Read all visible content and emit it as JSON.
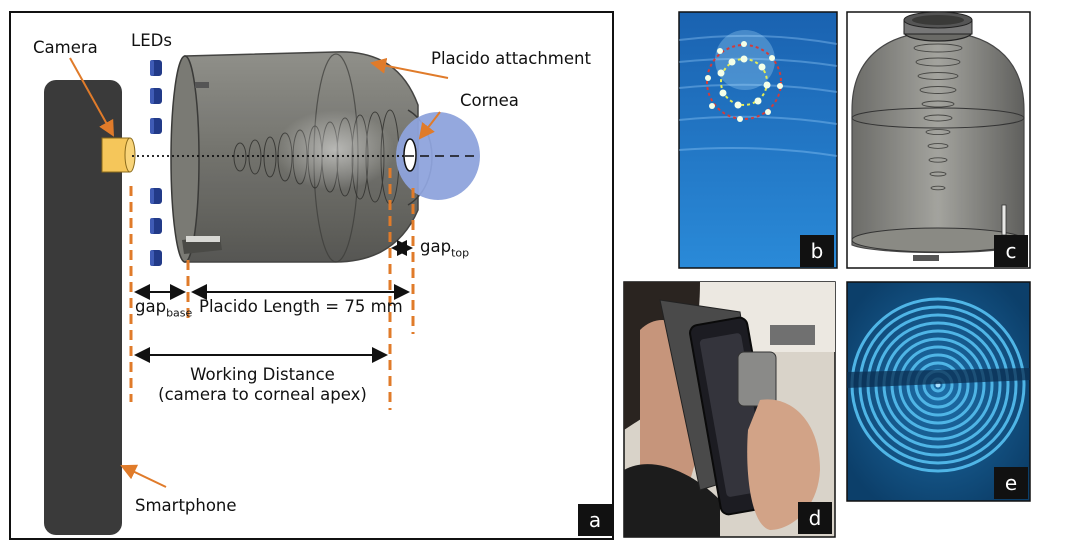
{
  "labels": {
    "camera": "Camera",
    "leds": "LEDs",
    "placido_attachment": "Placido attachment",
    "cornea": "Cornea",
    "gap_top": "gap",
    "gap_top_sub": "top",
    "gap_base": "gap",
    "gap_base_sub": "base",
    "placido_length": "Placido Length = 75 mm",
    "working_distance_line1": "Working Distance",
    "working_distance_line2": "(camera to corneal apex)",
    "smartphone": "Smartphone"
  },
  "panels": {
    "a": "a",
    "b": "b",
    "c": "c",
    "d": "d",
    "e": "e"
  },
  "colors": {
    "orange": "#e07b2a",
    "phone": "#3a3a3a",
    "camera": "#f5c65a",
    "led": "#223a88",
    "cornea": "#8ea3dc",
    "placido_shell": "#6a6a66",
    "photo_blue": "#1f79c6",
    "ring_blue": "#4fb5e6"
  }
}
